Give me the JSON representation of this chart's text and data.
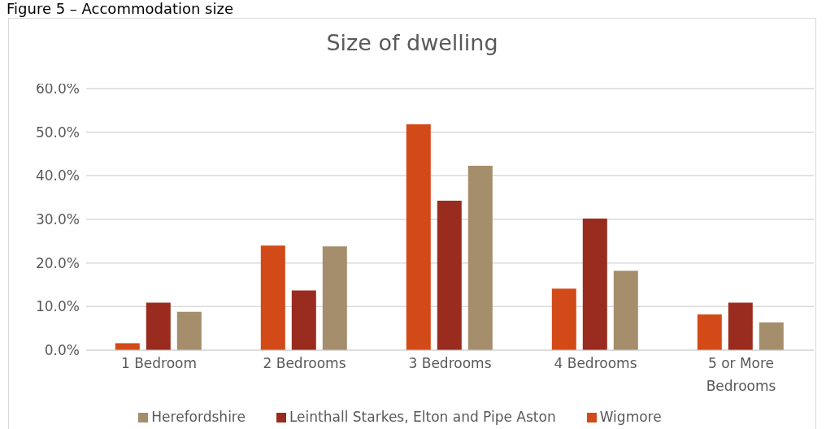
{
  "chart_data": {
    "type": "bar",
    "title": "Size of dwelling",
    "annotations": [
      "Figure 5 – Accommodation size"
    ],
    "categories": [
      "1 Bedroom",
      "2 Bedrooms",
      "3 Bedrooms",
      "4 Bedrooms",
      "5 or More Bedrooms"
    ],
    "series": [
      {
        "name": "Wigmore",
        "color": "#d24a18",
        "values": [
          1.6,
          24.0,
          51.8,
          14.1,
          8.2
        ]
      },
      {
        "name": "Leinthall Starkes, Elton and Pipe Aston",
        "color": "#9a2b1f",
        "values": [
          10.9,
          13.7,
          34.3,
          30.2,
          10.9
        ]
      },
      {
        "name": "Herefordshire",
        "color": "#a48e6b",
        "values": [
          8.8,
          23.8,
          42.3,
          18.2,
          6.4
        ]
      }
    ],
    "ylim": [
      0,
      60
    ],
    "yticks": [
      {
        "value": 0,
        "label": "0.0%"
      },
      {
        "value": 10,
        "label": "10.0%"
      },
      {
        "value": 20,
        "label": "20.0%"
      },
      {
        "value": 30,
        "label": "30.0%"
      },
      {
        "value": 40,
        "label": "40.0%"
      },
      {
        "value": 50,
        "label": "50.0%"
      },
      {
        "value": 60,
        "label": "60.0%"
      }
    ],
    "grid": "y",
    "legend": "bottom"
  }
}
